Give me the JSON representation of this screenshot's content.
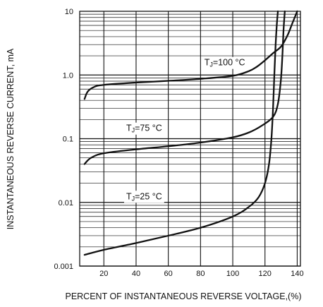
{
  "chart_data": {
    "type": "line",
    "xlabel": "PERCENT OF INSTANTANEOUS REVERSE VOLTAGE,(%)",
    "ylabel": "INSTANTANEOUS REVERSE CURRENT, mA",
    "xlim": [
      5,
      142
    ],
    "ylim": [
      0.001,
      10
    ],
    "yscale": "log",
    "grid": true,
    "x_ticks": [
      20,
      40,
      60,
      80,
      100,
      120,
      140
    ],
    "x_tick_labels": [
      "20",
      "40",
      "60",
      "80",
      "100",
      "120",
      "140"
    ],
    "y_ticks": [
      0.001,
      0.01,
      0.1,
      1,
      10
    ],
    "y_tick_labels": [
      "0.001",
      "0.01",
      "0.1",
      "1.0",
      "10"
    ],
    "series": [
      {
        "name": "TJ=100 °C",
        "label_main": "T",
        "label_sub": "J",
        "label_rest": "=100 °C",
        "x": [
          8,
          10,
          14,
          20,
          40,
          60,
          80,
          100,
          110,
          115,
          120,
          125,
          130,
          134,
          137,
          140
        ],
        "y": [
          0.42,
          0.55,
          0.65,
          0.7,
          0.76,
          0.81,
          0.87,
          0.97,
          1.15,
          1.35,
          1.7,
          2.2,
          2.8,
          4.2,
          6.5,
          10
        ]
      },
      {
        "name": "TJ=75 °C",
        "label_main": "T",
        "label_sub": "J",
        "label_rest": "=75 °C",
        "x": [
          8,
          12,
          20,
          40,
          60,
          80,
          100,
          110,
          118,
          125,
          128,
          129.8,
          130.8,
          131.5,
          132.3
        ],
        "y": [
          0.04,
          0.05,
          0.059,
          0.068,
          0.076,
          0.087,
          0.105,
          0.125,
          0.16,
          0.22,
          0.35,
          0.8,
          2,
          5,
          10
        ]
      },
      {
        "name": "TJ=25 °C",
        "label_main": "T",
        "label_sub": "J",
        "label_rest": "=25 °C",
        "x": [
          8,
          20,
          40,
          60,
          80,
          100,
          110,
          116,
          120,
          122.5,
          124,
          125,
          125.8,
          126.6,
          127.3,
          128
        ],
        "y": [
          0.0015,
          0.0018,
          0.0023,
          0.003,
          0.004,
          0.006,
          0.0085,
          0.012,
          0.02,
          0.04,
          0.1,
          0.3,
          1,
          3,
          6,
          10
        ]
      }
    ],
    "annotations": [
      {
        "series": 0,
        "x": 95,
        "y": 1.45
      },
      {
        "series": 1,
        "x": 45,
        "y": 0.135
      },
      {
        "series": 2,
        "x": 45,
        "y": 0.0115
      }
    ]
  }
}
